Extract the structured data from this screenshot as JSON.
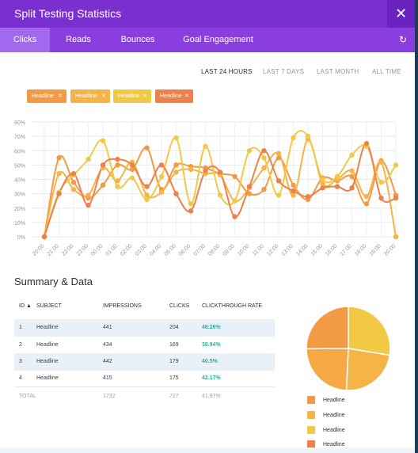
{
  "window": {
    "title": "Split Testing Statistics",
    "close_symbol": "✕"
  },
  "tabs": [
    "Clicks",
    "Reads",
    "Bounces",
    "Goal Engagement"
  ],
  "refresh_symbol": "↻",
  "time_ranges": [
    "LAST 24 HOURS",
    "LAST 7 DAYS",
    "LAST MONTH",
    "ALL TIME"
  ],
  "colors": {
    "header": "#7a2fd1",
    "tabbar": "#8a3ee0",
    "active_tab": "#a268ee",
    "rate": "#27b19a"
  },
  "filters": [
    {
      "label": "Headline",
      "color": "#f39a44"
    },
    {
      "label": "Headline",
      "color": "#f5b447"
    },
    {
      "label": "Headline",
      "color": "#f2c945"
    },
    {
      "label": "Headline",
      "color": "#ee8049"
    }
  ],
  "chart_data": {
    "type": "line",
    "x": [
      "20:00",
      "21:00",
      "22:00",
      "23:00",
      "00:00",
      "01:00",
      "02:00",
      "03:00",
      "04:00",
      "05:00",
      "06:00",
      "07:00",
      "08:00",
      "09:00",
      "10:00",
      "11:00",
      "12:00",
      "13:00",
      "14:00",
      "15:00",
      "16:00",
      "17:00",
      "18:00",
      "19:00",
      "20:00"
    ],
    "y_ticks": [
      "0%",
      "10%",
      "20%",
      "30%",
      "40%",
      "50%",
      "60%",
      "70%",
      "80%"
    ],
    "ylim": [
      0,
      80
    ],
    "grid": true,
    "series": [
      {
        "color": "#f39a44",
        "values": [
          0,
          55,
          38,
          27,
          36,
          50,
          47,
          62,
          33,
          50,
          49,
          48,
          44,
          42,
          30,
          33,
          55,
          36,
          26,
          41,
          39,
          42,
          23,
          53,
          29
        ]
      },
      {
        "color": "#f5b447",
        "values": [
          0,
          44,
          33,
          29,
          48,
          39,
          52,
          29,
          31,
          45,
          47,
          44,
          43,
          25,
          34,
          48,
          58,
          29,
          68,
          37,
          40,
          46,
          28,
          52,
          0
        ]
      },
      {
        "color": "#f2c945",
        "values": [
          0,
          31,
          43,
          54,
          67,
          35,
          41,
          26,
          42,
          69,
          23,
          63,
          29,
          25,
          60,
          55,
          29,
          69,
          70,
          40,
          42,
          57,
          63,
          38,
          50
        ]
      },
      {
        "color": "#ee8049",
        "values": [
          0,
          30,
          44,
          22,
          50,
          54,
          50,
          35,
          50,
          30,
          18,
          46,
          45,
          14,
          35,
          60,
          39,
          32,
          28,
          34,
          35,
          34,
          65,
          27,
          27
        ]
      }
    ]
  },
  "summary": {
    "title": "Summary & Data",
    "columns": [
      "ID ▲",
      "SUBJECT",
      "IMPRESSIONS",
      "CLICKS",
      "CLICKTHROUGH RATE"
    ],
    "rows": [
      {
        "id": "1",
        "subject": "Headline",
        "impressions": "441",
        "clicks": "204",
        "rate": "46.26%"
      },
      {
        "id": "2",
        "subject": "Headline",
        "impressions": "434",
        "clicks": "169",
        "rate": "38.94%"
      },
      {
        "id": "3",
        "subject": "Headline",
        "impressions": "442",
        "clicks": "179",
        "rate": "40.5%"
      },
      {
        "id": "4",
        "subject": "Headline",
        "impressions": "415",
        "clicks": "175",
        "rate": "42.17%"
      }
    ],
    "total": {
      "label": "TOTAL",
      "impressions": "1732",
      "clicks": "727",
      "rate": "41.97%"
    }
  },
  "pie": {
    "slices": [
      {
        "value": 46.26,
        "color": "#f2c945"
      },
      {
        "value": 38.94,
        "color": "#f5b447"
      },
      {
        "value": 40.5,
        "color": "#f5a843"
      },
      {
        "value": 42.17,
        "color": "#f39a44"
      }
    ],
    "legend": [
      {
        "label": "Headline",
        "color": "#f39a44"
      },
      {
        "label": "Headline",
        "color": "#f5b447"
      },
      {
        "label": "Headline",
        "color": "#f2c945"
      },
      {
        "label": "Headline",
        "color": "#ee8049"
      }
    ]
  }
}
